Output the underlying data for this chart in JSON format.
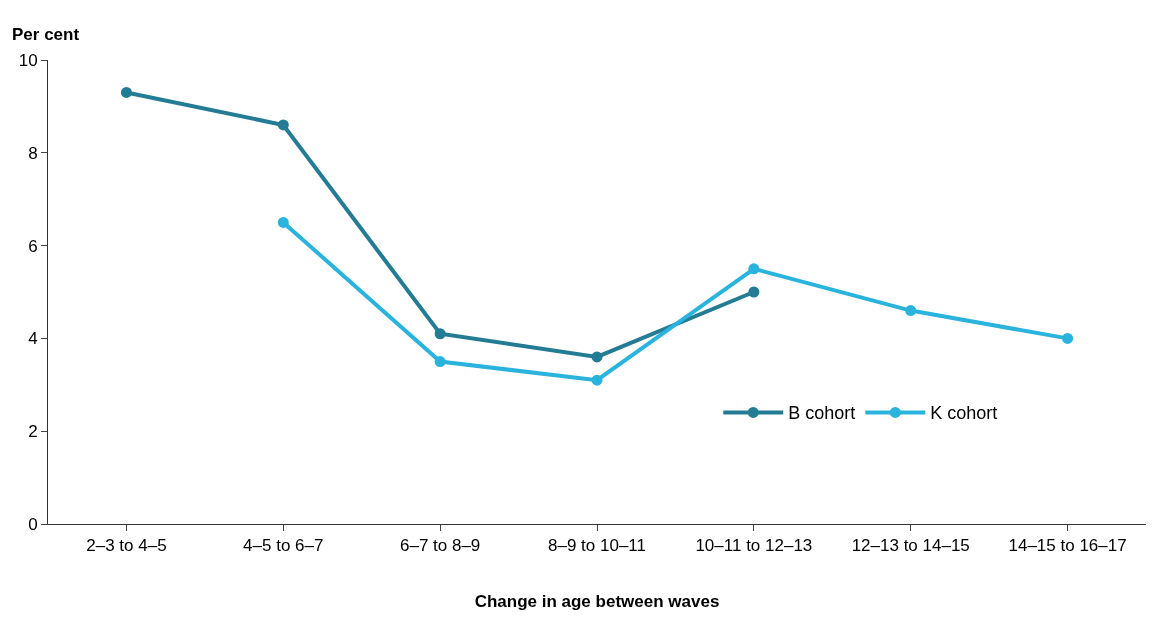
{
  "chart_data": {
    "type": "line",
    "ylabel": "Per cent",
    "xlabel": "Change in age between waves",
    "categories": [
      "2–3 to 4–5",
      "4–5 to 6–7",
      "6–7 to 8–9",
      "8–9 to 10–11",
      "10–11 to 12–13",
      "12–13 to 14–15",
      "14–15 to 16–17"
    ],
    "series": [
      {
        "name": "B cohort",
        "color": "#237b94",
        "values": [
          9.3,
          8.6,
          4.1,
          3.6,
          5.0,
          null,
          null
        ]
      },
      {
        "name": "K cohort",
        "color": "#2ab3dd",
        "values": [
          null,
          6.5,
          3.5,
          3.1,
          5.5,
          4.6,
          4.0
        ]
      }
    ],
    "ylim": [
      0,
      10
    ],
    "yticks": [
      0,
      2,
      4,
      6,
      8,
      10
    ],
    "legend": "bottom right",
    "marker": "circle",
    "line_style": "solid"
  }
}
